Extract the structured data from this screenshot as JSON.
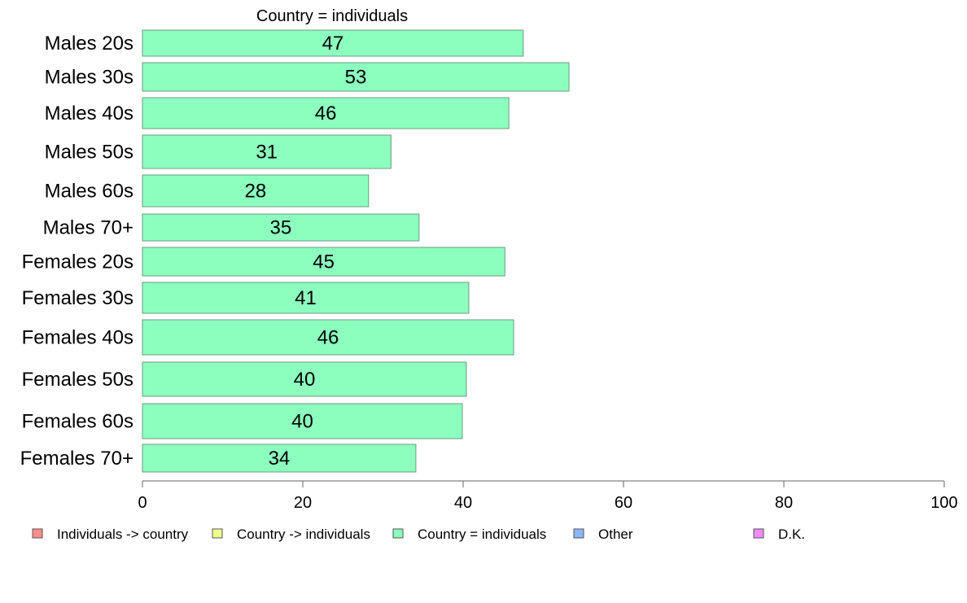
{
  "chart_data": {
    "type": "bar",
    "orientation": "horizontal",
    "title": "Country = individuals",
    "categories": [
      "Males 20s",
      "Males 30s",
      "Males 40s",
      "Males 50s",
      "Males 60s",
      "Males 70+",
      "Females 20s",
      "Females 30s",
      "Females 40s",
      "Females 50s",
      "Females 60s",
      "Females 70+"
    ],
    "series": [
      {
        "name": "Country = individuals",
        "values": [
          47.5,
          53.2,
          45.7,
          31.0,
          28.2,
          34.5,
          45.2,
          40.7,
          46.3,
          40.4,
          39.9,
          34.1
        ],
        "labels": [
          "47",
          "53",
          "46",
          "31",
          "28",
          "35",
          "45",
          "41",
          "46",
          "40",
          "40",
          "34"
        ],
        "color": "#8cffbf"
      }
    ],
    "xlim": [
      0,
      100
    ],
    "xticks": [
      "0",
      "20",
      "40",
      "60",
      "80",
      "100"
    ],
    "grid": false,
    "legend": {
      "position": "bottom",
      "items": [
        {
          "label": "Individuals -> country",
          "color": "#ff8c8c"
        },
        {
          "label": "Country -> individuals",
          "color": "#f0ff8c"
        },
        {
          "label": "Country = individuals",
          "color": "#8cffbf"
        },
        {
          "label": "Other",
          "color": "#8cb4ff"
        },
        {
          "label": "D.K.",
          "color": "#f08cff"
        }
      ]
    }
  }
}
